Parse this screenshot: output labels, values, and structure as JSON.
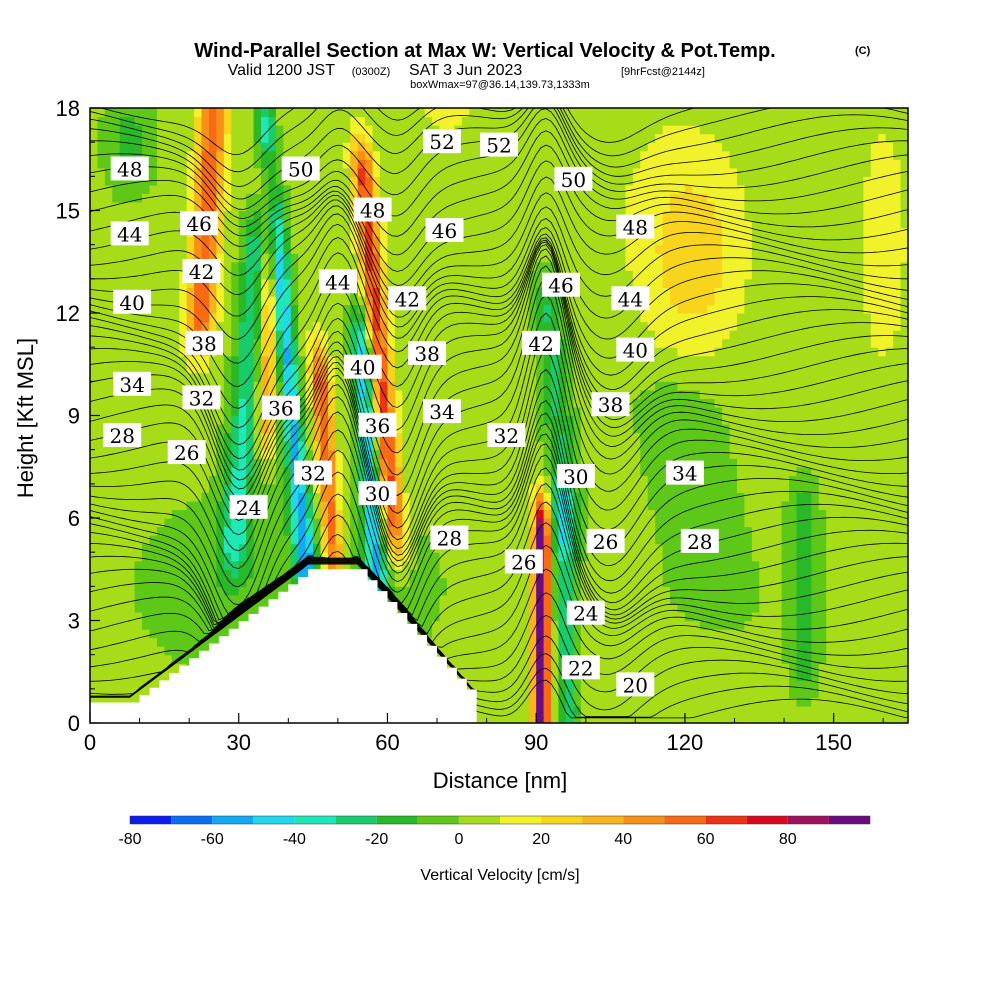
{
  "chart_data": {
    "type": "heatmap",
    "title": "Wind-Parallel Section at Max W: Vertical Velocity & Pot.Temp.",
    "title_mark": "(C)",
    "subtitle_main": "Valid 1200 JST",
    "subtitle_utc": "(0300Z)",
    "subtitle_date": "SAT 3 Jun 2023",
    "subtitle_fcst": "[9hrFcst@2144z]",
    "box_info": "boxWmax=97@36.14,139.73,1333m",
    "xlabel": "Distance [nm]",
    "ylabel": "Height [Kft MSL]",
    "xlim": [
      0,
      165
    ],
    "ylim": [
      0,
      18
    ],
    "xticks": [
      0,
      30,
      60,
      90,
      120,
      150
    ],
    "yticks": [
      0,
      3,
      6,
      9,
      12,
      15,
      18
    ],
    "colorbar": {
      "label": "Vertical Velocity [cm/s]",
      "tick_values": [
        -80,
        -60,
        -40,
        -20,
        0,
        20,
        40,
        60,
        80
      ],
      "levels": [
        -80,
        -70,
        -60,
        -50,
        -40,
        -30,
        -20,
        -10,
        0,
        10,
        20,
        30,
        40,
        50,
        60,
        70,
        80,
        90
      ],
      "colors": [
        "#0a1ef0",
        "#0a6ef5",
        "#12aaf5",
        "#1fd8ee",
        "#1fe8b8",
        "#18cc6c",
        "#28b828",
        "#5ec818",
        "#a6dc18",
        "#f2f22a",
        "#f8d41c",
        "#f8b418",
        "#f89018",
        "#f86a14",
        "#ec3212",
        "#d80a20",
        "#a0105c",
        "#6c0a84"
      ]
    },
    "theta_contour_labels": [
      {
        "value": "48",
        "x": 8,
        "y": 16.2
      },
      {
        "value": "44",
        "x": 8,
        "y": 14.3
      },
      {
        "value": "40",
        "x": 8.5,
        "y": 12.3
      },
      {
        "value": "34",
        "x": 8.5,
        "y": 9.9
      },
      {
        "value": "28",
        "x": 6.5,
        "y": 8.4
      },
      {
        "value": "46",
        "x": 22,
        "y": 14.6
      },
      {
        "value": "42",
        "x": 22.5,
        "y": 13.2
      },
      {
        "value": "38",
        "x": 23,
        "y": 11.1
      },
      {
        "value": "32",
        "x": 22.5,
        "y": 9.5
      },
      {
        "value": "26",
        "x": 19.5,
        "y": 7.9
      },
      {
        "value": "24",
        "x": 32,
        "y": 6.3
      },
      {
        "value": "50",
        "x": 42.5,
        "y": 16.2
      },
      {
        "value": "36",
        "x": 38.5,
        "y": 9.2
      },
      {
        "value": "32",
        "x": 45,
        "y": 7.3
      },
      {
        "value": "44",
        "x": 50,
        "y": 12.9
      },
      {
        "value": "40",
        "x": 55,
        "y": 10.4
      },
      {
        "value": "36",
        "x": 58,
        "y": 8.7
      },
      {
        "value": "30",
        "x": 58,
        "y": 6.7
      },
      {
        "value": "48",
        "x": 57,
        "y": 15.0
      },
      {
        "value": "42",
        "x": 64,
        "y": 12.4
      },
      {
        "value": "38",
        "x": 68,
        "y": 10.8
      },
      {
        "value": "34",
        "x": 71,
        "y": 9.1
      },
      {
        "value": "28",
        "x": 72.5,
        "y": 5.4
      },
      {
        "value": "52",
        "x": 71,
        "y": 17.0
      },
      {
        "value": "52",
        "x": 82.5,
        "y": 16.9
      },
      {
        "value": "46",
        "x": 71.5,
        "y": 14.4
      },
      {
        "value": "50",
        "x": 97.5,
        "y": 15.9
      },
      {
        "value": "46",
        "x": 95,
        "y": 12.8
      },
      {
        "value": "42",
        "x": 91,
        "y": 11.1
      },
      {
        "value": "32",
        "x": 84,
        "y": 8.4
      },
      {
        "value": "30",
        "x": 98,
        "y": 7.2
      },
      {
        "value": "26",
        "x": 87.5,
        "y": 4.7
      },
      {
        "value": "26",
        "x": 104,
        "y": 5.3
      },
      {
        "value": "24",
        "x": 100,
        "y": 3.2
      },
      {
        "value": "22",
        "x": 99,
        "y": 1.6
      },
      {
        "value": "20",
        "x": 110,
        "y": 1.1
      },
      {
        "value": "48",
        "x": 110,
        "y": 14.5
      },
      {
        "value": "44",
        "x": 109,
        "y": 12.4
      },
      {
        "value": "40",
        "x": 110,
        "y": 10.9
      },
      {
        "value": "38",
        "x": 105,
        "y": 9.3
      },
      {
        "value": "34",
        "x": 120,
        "y": 7.3
      },
      {
        "value": "28",
        "x": 123,
        "y": 5.3
      }
    ]
  }
}
